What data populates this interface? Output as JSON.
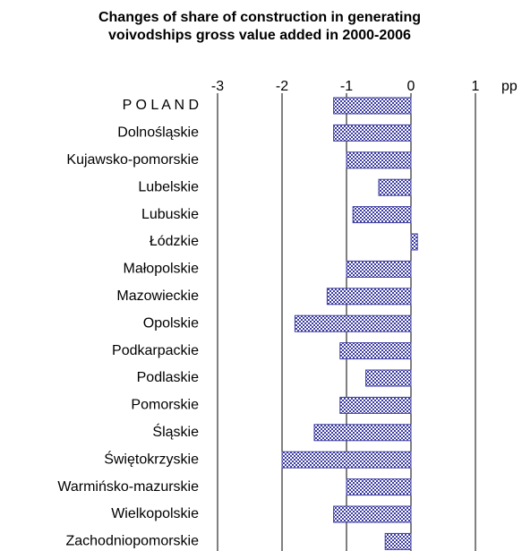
{
  "chart_data": {
    "type": "barh",
    "title": [
      "Changes of share of construction in generating",
      "voivodships gross value added in 2000-2006"
    ],
    "x_label": "pp",
    "categories": [
      "P O L A N D",
      "Dolnośląskie",
      "Kujawsko-pomorskie",
      "Lubelskie",
      "Lubuskie",
      "Łódzkie",
      "Małopolskie",
      "Mazowieckie",
      "Opolskie",
      "Podkarpackie",
      "Podlaskie",
      "Pomorskie",
      "Śląskie",
      "Świętokrzyskie",
      "Warmińsko-mazurskie",
      "Wielkopolskie",
      "Zachodniopomorskie"
    ],
    "values": [
      -1.2,
      -1.2,
      -1.0,
      -0.5,
      -0.9,
      0.1,
      -1.0,
      -1.3,
      -1.8,
      -1.1,
      -0.7,
      -1.1,
      -1.5,
      -2.0,
      -1.0,
      -1.2,
      -0.4
    ],
    "color": "#3c3ca0",
    "xlim": [
      -3,
      1
    ],
    "xticks": [
      -3,
      -2,
      -1,
      0,
      1
    ],
    "grid": true
  }
}
